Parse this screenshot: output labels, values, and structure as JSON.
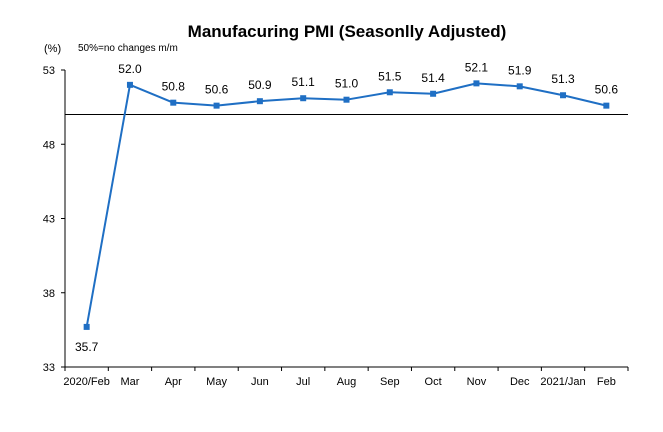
{
  "chart_data": {
    "type": "line",
    "title": "Manufacuring PMI (Seasonlly Adjusted)",
    "y_unit": "(%)",
    "note": "50%=no changes  m/m",
    "categories": [
      "2020/Feb",
      "Mar",
      "Apr",
      "May",
      "Jun",
      "Jul",
      "Aug",
      "Sep",
      "Oct",
      "Nov",
      "Dec",
      "2021/Jan",
      "Feb"
    ],
    "series": [
      {
        "values": [
          35.7,
          52.0,
          50.8,
          50.6,
          50.9,
          51.1,
          51.0,
          51.5,
          51.4,
          52.1,
          51.9,
          51.3,
          50.6
        ],
        "labels": [
          "35.7",
          "52.0",
          "50.8",
          "50.6",
          "50.9",
          "51.1",
          "51.0",
          "51.5",
          "51.4",
          "52.1",
          "51.9",
          "51.3",
          "50.6"
        ],
        "color": "#1f6fc4"
      }
    ],
    "y_ticks": [
      33,
      38,
      43,
      48,
      53
    ],
    "y_tick_labels": [
      "33",
      "38",
      "43",
      "48",
      "53"
    ],
    "ylim": [
      33,
      53
    ],
    "reference_value": 50,
    "grid": false,
    "legend": "none"
  }
}
